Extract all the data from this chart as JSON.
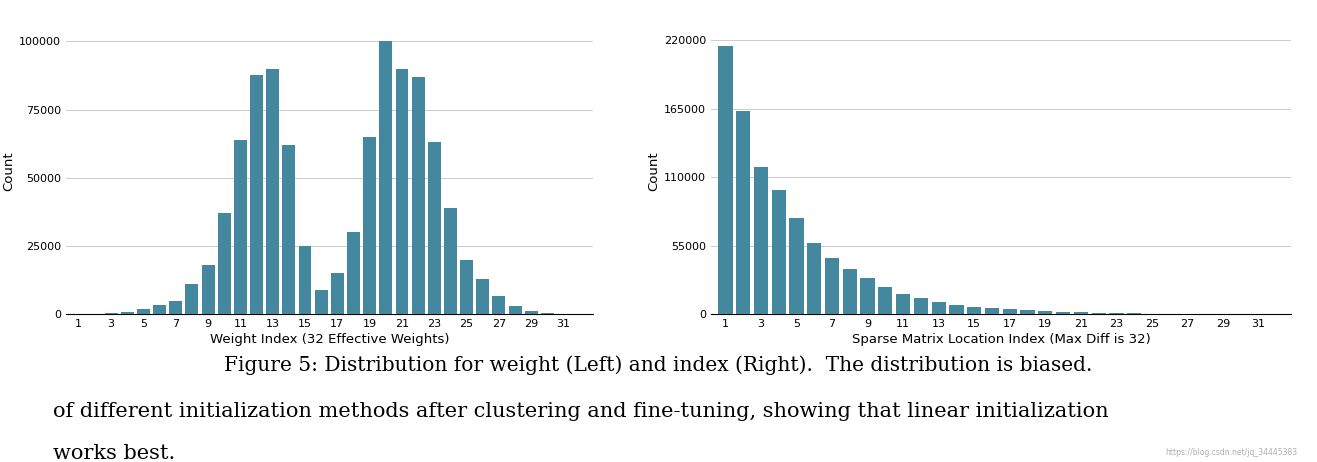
{
  "left_chart": {
    "xlabel": "Weight Index (32 Effective Weights)",
    "ylabel": "Count",
    "bar_color": "#4488a0",
    "x_ticks": [
      1,
      3,
      5,
      7,
      9,
      11,
      13,
      15,
      17,
      19,
      21,
      23,
      25,
      27,
      29,
      31
    ],
    "categories": [
      1,
      2,
      3,
      4,
      5,
      6,
      7,
      8,
      9,
      10,
      11,
      12,
      13,
      14,
      15,
      16,
      17,
      18,
      19,
      20,
      21,
      22,
      23,
      24,
      25,
      26,
      27,
      28,
      29,
      30,
      31,
      32
    ],
    "values": [
      150,
      200,
      300,
      800,
      1800,
      3500,
      5000,
      11000,
      18000,
      37000,
      64000,
      87500,
      90000,
      62000,
      25000,
      9000,
      15000,
      30000,
      65000,
      100000,
      90000,
      87000,
      63000,
      39000,
      20000,
      13000,
      6500,
      3000,
      1200,
      500,
      200,
      100
    ],
    "ylim": [
      0,
      105000
    ],
    "yticks": [
      0,
      25000,
      50000,
      75000,
      100000
    ]
  },
  "right_chart": {
    "xlabel": "Sparse Matrix Location Index (Max Diff is 32)",
    "ylabel": "Count",
    "bar_color": "#4488a0",
    "x_ticks": [
      1,
      3,
      5,
      7,
      9,
      11,
      13,
      15,
      17,
      19,
      21,
      23,
      25,
      27,
      29,
      31
    ],
    "categories": [
      1,
      2,
      3,
      4,
      5,
      6,
      7,
      8,
      9,
      10,
      11,
      12,
      13,
      14,
      15,
      16,
      17,
      18,
      19,
      20,
      21,
      22,
      23,
      24,
      25,
      26,
      27,
      28,
      29,
      30,
      31,
      32
    ],
    "values": [
      215000,
      163000,
      118000,
      100000,
      77000,
      57000,
      45000,
      36000,
      29000,
      22000,
      16500,
      13000,
      10000,
      7500,
      6000,
      5000,
      4000,
      3200,
      2500,
      2000,
      1500,
      1200,
      900,
      700,
      500,
      350,
      250,
      180,
      130,
      100,
      80,
      60
    ],
    "ylim": [
      0,
      230000
    ],
    "yticks": [
      0,
      55000,
      110000,
      165000,
      220000
    ]
  },
  "figure_caption": "Figure 5: Distribution for weight (Left) and index (Right).  The distribution is biased.",
  "body_text_line1": "of different initialization methods after clustering and fine-tuning, showing that linear initialization",
  "body_text_line2": "works best.",
  "watermark": "https://blog.csdn.net/jq_34445383",
  "bg_color": "#ffffff",
  "caption_fontsize": 14.5,
  "body_fontsize": 15
}
